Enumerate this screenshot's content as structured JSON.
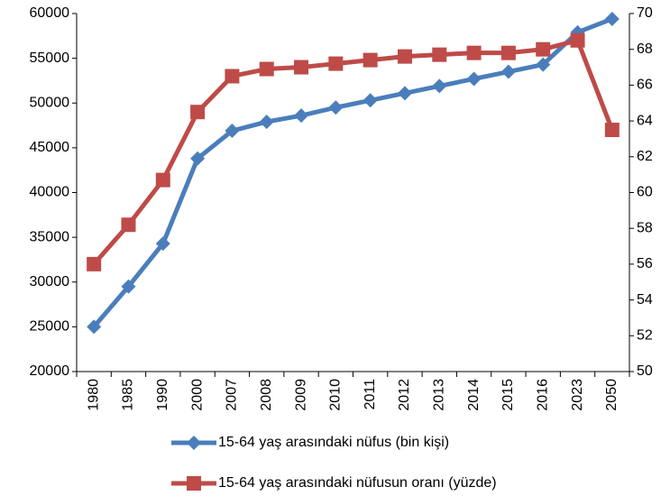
{
  "chart_data": {
    "type": "line",
    "categories": [
      "1980",
      "1985",
      "1990",
      "2000",
      "2007",
      "2008",
      "2009",
      "2010",
      "2011",
      "2012",
      "2013",
      "2014",
      "2015",
      "2016",
      "2023",
      "2050"
    ],
    "series": [
      {
        "name": "15-64 yaş arasındaki nüfus (bin kişi)",
        "color": "#4a7ebb",
        "marker": "diamond",
        "values": [
          25000,
          29500,
          34300,
          43800,
          46900,
          47900,
          48600,
          49500,
          50300,
          51100,
          51900,
          52700,
          53500,
          54300,
          57900,
          59400
        ]
      },
      {
        "name": "15-64 yaş arasındaki nüfusun oranı (yüzde)",
        "color": "#be4b48",
        "marker": "square",
        "axis": "y2",
        "values": [
          56.0,
          58.2,
          60.7,
          64.5,
          66.5,
          66.9,
          67.0,
          67.2,
          67.4,
          67.6,
          67.7,
          67.8,
          67.8,
          68.0,
          68.5,
          63.5
        ]
      }
    ],
    "ylim": [
      20000,
      60000
    ],
    "yticks": [
      20000,
      25000,
      30000,
      35000,
      40000,
      45000,
      50000,
      55000,
      60000
    ],
    "y2lim": [
      50,
      70
    ],
    "y2ticks": [
      50,
      52,
      54,
      56,
      58,
      60,
      62,
      64,
      66,
      68,
      70
    ],
    "legend": "bottom"
  }
}
